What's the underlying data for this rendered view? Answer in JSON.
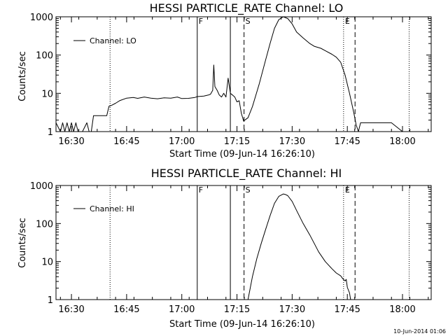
{
  "chart_data": [
    {
      "type": "line",
      "title": "HESSI PARTICLE_RATE Channel: LO",
      "xlabel": "Start Time (09-Jun-14 16:26:10)",
      "ylabel": "Counts/sec",
      "yscale": "log",
      "xlim": [
        16.43,
        18.13
      ],
      "ylim": [
        1,
        1000
      ],
      "xticks": [
        "16:30",
        "16:45",
        "17:00",
        "17:15",
        "17:30",
        "17:45",
        "18:00"
      ],
      "xtick_values": [
        16.5,
        16.75,
        17.0,
        17.25,
        17.5,
        17.75,
        18.0
      ],
      "yticks": [
        "1",
        "10",
        "100",
        "1000"
      ],
      "ytick_values": [
        1,
        10,
        100,
        1000
      ],
      "legend": {
        "label": "Channel: LO",
        "placement": "top-left"
      },
      "markers": [
        {
          "label": "F",
          "x": 17.07,
          "style": "solid"
        },
        {
          "label": "",
          "x": 17.22,
          "style": "solid"
        },
        {
          "label": "S",
          "x": 17.282,
          "style": "dashed"
        },
        {
          "label": "E",
          "x": 17.733,
          "style": "dotted"
        },
        {
          "label": "",
          "x": 17.785,
          "style": "dashed"
        },
        {
          "label": "",
          "x": 16.675,
          "style": "dotted"
        },
        {
          "label": "",
          "x": 18.03,
          "style": "dotted"
        }
      ],
      "series": [
        {
          "x": [
            16.43,
            16.45,
            16.46,
            16.47,
            16.48,
            16.49,
            16.5,
            16.51,
            16.52,
            16.53,
            16.55,
            16.57,
            16.58,
            16.59,
            16.6,
            16.62,
            16.64,
            16.65,
            16.66,
            16.67,
            16.68,
            16.7,
            16.72,
            16.75,
            16.78,
            16.8,
            16.83,
            16.86,
            16.89,
            16.92,
            16.95,
            16.98,
            17.0,
            17.03,
            17.06,
            17.07,
            17.1,
            17.12,
            17.13,
            17.14,
            17.145,
            17.15,
            17.16,
            17.17,
            17.18,
            17.19,
            17.2,
            17.21,
            17.22,
            17.23,
            17.24,
            17.25,
            17.26,
            17.27,
            17.28,
            17.3,
            17.32,
            17.35,
            17.38,
            17.4,
            17.42,
            17.44,
            17.46,
            17.48,
            17.5,
            17.52,
            17.55,
            17.58,
            17.6,
            17.63,
            17.65,
            17.68,
            17.7,
            17.72,
            17.74,
            17.76,
            17.78,
            17.79,
            17.8,
            17.81,
            17.85,
            17.9,
            17.95,
            18.0,
            18.05,
            18.1,
            18.13
          ],
          "values": [
            1.7,
            1,
            1.7,
            1,
            1.7,
            1,
            1.7,
            1,
            1.7,
            1,
            1,
            1.7,
            1,
            1,
            2.6,
            2.6,
            2.6,
            2.6,
            2.6,
            4.6,
            4.8,
            5.5,
            6.5,
            7.5,
            7.8,
            7.4,
            8,
            7.5,
            7.2,
            7.6,
            7.5,
            8,
            7.3,
            7.4,
            7.8,
            8.2,
            8.5,
            9,
            9.5,
            12,
            55,
            15,
            12,
            9,
            8,
            10,
            8,
            25,
            10,
            9,
            8,
            6,
            6.4,
            3,
            1.9,
            2.3,
            4.5,
            17,
            75,
            200,
            500,
            850,
            1000,
            900,
            650,
            400,
            280,
            200,
            170,
            150,
            130,
            105,
            88,
            65,
            30,
            10,
            3,
            1.5,
            1,
            1.7,
            1.7,
            1.7,
            1.7,
            1,
            1,
            1,
            1
          ]
        }
      ]
    },
    {
      "type": "line",
      "title": "HESSI PARTICLE_RATE Channel: HI",
      "xlabel": "Start Time (09-Jun-14 16:26:10)",
      "ylabel": "Counts/sec",
      "yscale": "log",
      "xlim": [
        16.43,
        18.13
      ],
      "ylim": [
        1,
        1000
      ],
      "xticks": [
        "16:30",
        "16:45",
        "17:00",
        "17:15",
        "17:30",
        "17:45",
        "18:00"
      ],
      "xtick_values": [
        16.5,
        16.75,
        17.0,
        17.25,
        17.5,
        17.75,
        18.0
      ],
      "yticks": [
        "1",
        "10",
        "100",
        "1000"
      ],
      "ytick_values": [
        1,
        10,
        100,
        1000
      ],
      "legend": {
        "label": "Channel: HI",
        "placement": "top-left"
      },
      "markers": [
        {
          "label": "F",
          "x": 17.07,
          "style": "solid"
        },
        {
          "label": "",
          "x": 17.22,
          "style": "solid"
        },
        {
          "label": "S",
          "x": 17.282,
          "style": "dashed"
        },
        {
          "label": "E",
          "x": 17.733,
          "style": "dotted"
        },
        {
          "label": "",
          "x": 17.785,
          "style": "dashed"
        },
        {
          "label": "",
          "x": 16.675,
          "style": "dotted"
        },
        {
          "label": "",
          "x": 18.03,
          "style": "dotted"
        }
      ],
      "series": [
        {
          "x": [
            17.3,
            17.32,
            17.34,
            17.36,
            17.38,
            17.4,
            17.42,
            17.44,
            17.46,
            17.47,
            17.48,
            17.5,
            17.52,
            17.55,
            17.58,
            17.6,
            17.62,
            17.65,
            17.68,
            17.7,
            17.72,
            17.73,
            17.74,
            17.745,
            17.75,
            17.76,
            17.765
          ],
          "values": [
            1,
            4,
            12,
            30,
            70,
            160,
            340,
            520,
            600,
            580,
            540,
            380,
            220,
            100,
            50,
            30,
            18,
            10,
            6.5,
            5,
            4.2,
            3.5,
            3.1,
            3.4,
            2.1,
            1.5,
            1
          ]
        }
      ]
    }
  ],
  "timestamp": "10-Jun-2014 01:06"
}
